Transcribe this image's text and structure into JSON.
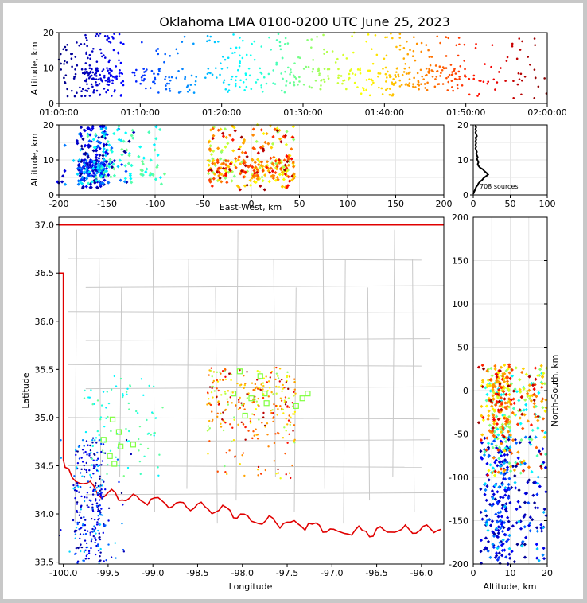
{
  "chart_data": [
    {
      "panel": "altitude-vs-time",
      "type": "scatter",
      "title": "Oklahoma LMA 0100-0200 UTC June 25, 2023",
      "ylabel": "Altitude, km",
      "x_ticks": [
        "01:00:00",
        "01:10:00",
        "01:20:00",
        "01:30:00",
        "01:40:00",
        "01:50:00",
        "02:00:00"
      ],
      "x_range_minutes": [
        0,
        60
      ],
      "ylim": [
        0,
        20
      ],
      "y_ticks": [
        0,
        10,
        20
      ],
      "color_by": "time",
      "clusters": [
        {
          "t_min": 3,
          "t_max": 8,
          "alt_min": 2,
          "alt_max": 20,
          "count": 150
        },
        {
          "t_min": 0,
          "t_max": 3,
          "alt_min": 2,
          "alt_max": 18,
          "count": 40
        },
        {
          "t_min": 9,
          "t_max": 17,
          "alt_min": 3,
          "alt_max": 20,
          "count": 70
        },
        {
          "t_min": 18,
          "t_max": 29,
          "alt_min": 3,
          "alt_max": 20,
          "count": 110
        },
        {
          "t_min": 29,
          "t_max": 37,
          "alt_min": 4,
          "alt_max": 20,
          "count": 70
        },
        {
          "t_min": 37,
          "t_max": 44,
          "alt_min": 2,
          "alt_max": 20,
          "count": 100
        },
        {
          "t_min": 44,
          "t_max": 50,
          "alt_min": 3,
          "alt_max": 20,
          "count": 90
        },
        {
          "t_min": 50,
          "t_max": 60,
          "alt_min": 1,
          "alt_max": 20,
          "count": 50
        }
      ]
    },
    {
      "panel": "altitude-vs-east-west",
      "type": "scatter",
      "xlabel": "East-West, km",
      "ylabel": "Altitude, km",
      "xlim": [
        -200,
        200
      ],
      "x_ticks": [
        -200,
        -150,
        -100,
        -50,
        0,
        50,
        100,
        150,
        200
      ],
      "ylim": [
        0,
        20
      ],
      "y_ticks": [
        0,
        10,
        20
      ],
      "grid": true
    },
    {
      "panel": "altitude-histogram",
      "type": "line",
      "annotation": "708 sources",
      "xlim": [
        0,
        100
      ],
      "x_ticks": [
        0,
        50,
        100
      ],
      "ylim": [
        0,
        20
      ],
      "y_ticks": [
        0,
        10,
        20
      ],
      "profile": [
        [
          0,
          0.3
        ],
        [
          1,
          0.8
        ],
        [
          2,
          1.3
        ],
        [
          3,
          1.8
        ],
        [
          4,
          2.3
        ],
        [
          6,
          2.8
        ],
        [
          7,
          3.3
        ],
        [
          9,
          3.8
        ],
        [
          12,
          4.3
        ],
        [
          14,
          4.8
        ],
        [
          17,
          5.3
        ],
        [
          20,
          5.8
        ],
        [
          18,
          6.3
        ],
        [
          15,
          6.8
        ],
        [
          13,
          7.3
        ],
        [
          9,
          7.8
        ],
        [
          7,
          8.3
        ],
        [
          6,
          8.8
        ],
        [
          7,
          9.3
        ],
        [
          6,
          9.8
        ],
        [
          5,
          10.3
        ],
        [
          6,
          10.8
        ],
        [
          5,
          11.3
        ],
        [
          4,
          11.8
        ],
        [
          5,
          12.3
        ],
        [
          4,
          12.8
        ],
        [
          3,
          13.3
        ],
        [
          4,
          13.8
        ],
        [
          3,
          14.3
        ],
        [
          4,
          14.8
        ],
        [
          3,
          15.3
        ],
        [
          4,
          15.8
        ],
        [
          3,
          16.3
        ],
        [
          5,
          16.8
        ],
        [
          4,
          17.3
        ],
        [
          3,
          17.8
        ],
        [
          4,
          18.3
        ],
        [
          3,
          18.8
        ],
        [
          4,
          19.3
        ],
        [
          2,
          19.8
        ]
      ]
    },
    {
      "panel": "plan-view-map",
      "type": "scatter",
      "xlabel": "Longitude",
      "ylabel": "Latitude",
      "xlim": [
        -100.05,
        -95.75
      ],
      "x_ticks": [
        -100.0,
        -99.5,
        -99.0,
        -98.5,
        -98.0,
        -97.5,
        -97.0,
        -96.5,
        -96.0
      ],
      "ylim": [
        33.48,
        37.08
      ],
      "y_ticks": [
        33.5,
        34.0,
        34.5,
        35.0,
        35.5,
        36.0,
        36.5,
        37.0
      ],
      "stations": [
        [
          -99.55,
          34.77
        ],
        [
          -99.45,
          34.98
        ],
        [
          -99.38,
          34.85
        ],
        [
          -99.36,
          34.7
        ],
        [
          -99.22,
          34.72
        ],
        [
          -99.43,
          34.52
        ],
        [
          -99.48,
          34.6
        ],
        [
          -98.03,
          35.48
        ],
        [
          -97.8,
          35.43
        ],
        [
          -98.1,
          35.25
        ],
        [
          -97.9,
          35.2
        ],
        [
          -97.75,
          35.25
        ],
        [
          -97.97,
          35.02
        ],
        [
          -97.73,
          35.15
        ],
        [
          -97.4,
          35.12
        ],
        [
          -97.33,
          35.2
        ],
        [
          -97.27,
          35.25
        ]
      ]
    },
    {
      "panel": "north-south-vs-altitude",
      "type": "scatter",
      "xlabel": "Altitude, km",
      "ylabel": "North-South, km",
      "xlim": [
        0,
        20
      ],
      "x_ticks": [
        0,
        10,
        20
      ],
      "ylim": [
        -200,
        200
      ],
      "y_ticks": [
        -200,
        -150,
        -100,
        -50,
        0,
        50,
        100,
        150,
        200
      ],
      "grid": true
    }
  ]
}
